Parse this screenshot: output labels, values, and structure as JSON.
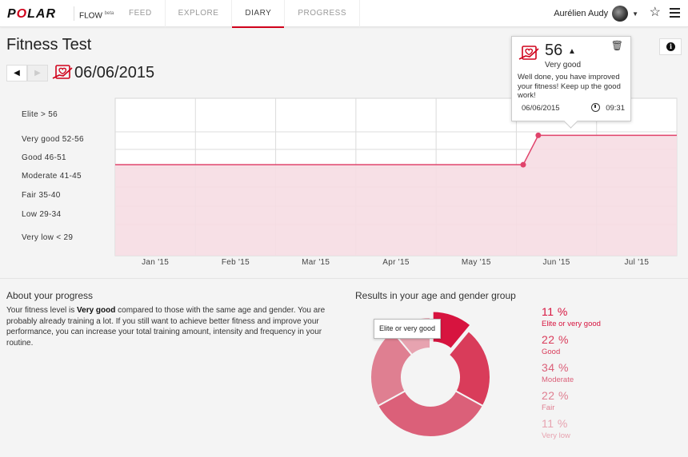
{
  "header": {
    "logo": "POLAR",
    "product": "FLOW",
    "product_tag": "beta",
    "nav": [
      "FEED",
      "EXPLORE",
      "DIARY",
      "PROGRESS"
    ],
    "active_nav": "DIARY",
    "user_name": "Aurélien Audy"
  },
  "page": {
    "title": "Fitness Test",
    "date": "06/06/2015"
  },
  "popup": {
    "score": "56",
    "level": "Very good",
    "message": "Well done, you have improved your fitness! Keep up the good work!",
    "date": "06/06/2015",
    "time": "09:31"
  },
  "chart_data": {
    "type": "line",
    "levels": [
      "Elite > 56",
      "Very good 52-56",
      "Good 46-51",
      "Moderate 41-45",
      "Fair 35-40",
      "Low 29-34",
      "Very low < 29"
    ],
    "x_labels": [
      "Jan '15",
      "Feb '15",
      "Mar '15",
      "Apr '15",
      "May '15",
      "Jun '15",
      "Jul '15"
    ],
    "series": [
      {
        "points": [
          {
            "x": "2014-12-20",
            "y": 47
          },
          {
            "x": "2015-05-31",
            "y": 47
          },
          {
            "x": "2015-06-06",
            "y": 56
          },
          {
            "x": "2015-07-31",
            "y": 56
          }
        ]
      }
    ],
    "markers": [
      {
        "x": "2015-05-31",
        "y": 47
      },
      {
        "x": "2015-06-06",
        "y": 56
      }
    ],
    "line_color": "#e0436b",
    "fill_color": "#f6dde3"
  },
  "about": {
    "title": "About your progress",
    "text_before": "Your fitness level is ",
    "text_bold": "Very good",
    "text_after": " compared to those with the same age and gender. You are probably already training a lot. If you still want to achieve better fitness and improve your performance, you can increase your total training amount, intensity and frequency in your routine."
  },
  "results": {
    "title": "Results in your age and gender group",
    "tooltip": "Elite or very good",
    "items": [
      {
        "pct": "11 %",
        "name": "Elite or very good",
        "value": 11,
        "color": "#d7143f"
      },
      {
        "pct": "22 %",
        "name": "Good",
        "value": 22,
        "color": "#d93c5a"
      },
      {
        "pct": "34 %",
        "name": "Moderate",
        "value": 34,
        "color": "#db6079"
      },
      {
        "pct": "22 %",
        "name": "Fair",
        "value": 22,
        "color": "#df7f91"
      },
      {
        "pct": "11 %",
        "name": "Very low",
        "value": 11,
        "color": "#e7a3b0"
      }
    ]
  }
}
